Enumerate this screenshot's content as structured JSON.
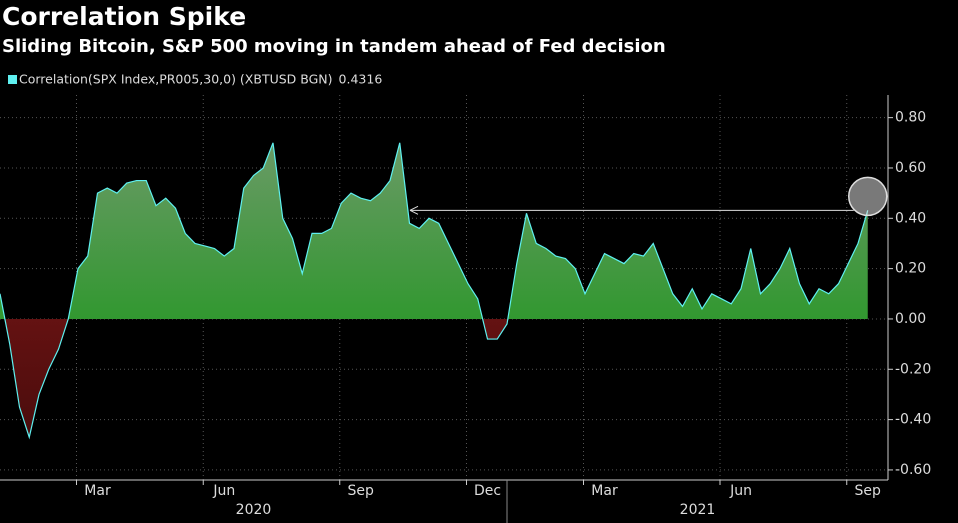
{
  "chart_data": {
    "type": "area",
    "title": "Correlation Spike",
    "subtitle": "Sliding Bitcoin, S&P 500 moving in tandem ahead of Fed decision",
    "categories": [
      null,
      null,
      null,
      null,
      null,
      null,
      null,
      null,
      null,
      null,
      "Mar",
      null,
      null,
      null,
      null,
      null,
      null,
      null,
      null,
      null,
      null,
      null,
      null,
      "Jun",
      null,
      null,
      null,
      null,
      null,
      null,
      null,
      null,
      null,
      null,
      null,
      null,
      null,
      "Sep",
      null,
      null,
      null,
      null,
      null,
      null,
      null,
      null,
      null,
      null,
      null,
      null,
      "Dec",
      null,
      null,
      null,
      null,
      null,
      null,
      null,
      null,
      null,
      null,
      null,
      "Mar",
      null,
      null,
      null,
      null,
      null,
      null,
      null,
      null,
      null,
      null,
      null,
      null,
      null,
      "Jun",
      null,
      null,
      null,
      null,
      null,
      null,
      null,
      null,
      null,
      null,
      null,
      null,
      "Sep"
    ],
    "years": [
      "2020",
      "2021"
    ],
    "series": [
      {
        "name": "Correlation(SPX Index,PR005,30,0) (XBTUSD BGN)",
        "color": "#5ff0f0",
        "positive_color": "#119611",
        "negative_color": "#8b1a1a",
        "values": [
          0.1,
          -0.1,
          -0.35,
          -0.47,
          -0.3,
          -0.2,
          -0.12,
          0.0,
          0.2,
          0.25,
          0.5,
          0.52,
          0.5,
          0.54,
          0.55,
          0.55,
          0.45,
          0.48,
          0.44,
          0.34,
          0.3,
          0.29,
          0.28,
          0.25,
          0.28,
          0.52,
          0.57,
          0.6,
          0.7,
          0.4,
          0.32,
          0.18,
          0.34,
          0.34,
          0.36,
          0.46,
          0.5,
          0.48,
          0.47,
          0.5,
          0.55,
          0.7,
          0.38,
          0.36,
          0.4,
          0.38,
          0.3,
          0.22,
          0.14,
          0.08,
          -0.08,
          -0.08,
          -0.02,
          0.22,
          0.42,
          0.3,
          0.28,
          0.25,
          0.24,
          0.2,
          0.1,
          0.18,
          0.26,
          0.24,
          0.22,
          0.26,
          0.25,
          0.3,
          0.2,
          0.1,
          0.05,
          0.12,
          0.04,
          0.1,
          0.08,
          0.06,
          0.12,
          0.28,
          0.1,
          0.14,
          0.2,
          0.28,
          0.14,
          0.06,
          0.12,
          0.1,
          0.14,
          0.22,
          0.3,
          0.4316
        ]
      }
    ],
    "ylim": [
      -0.64,
      0.89
    ],
    "yticks": [
      {
        "value": 0.8,
        "label": "0.80"
      },
      {
        "value": 0.6,
        "label": "0.60"
      },
      {
        "value": 0.4,
        "label": "0.40"
      },
      {
        "value": 0.2,
        "label": "0.20"
      },
      {
        "value": 0,
        "label": "0.00"
      },
      {
        "value": -0.2,
        "label": "-0.20"
      },
      {
        "value": -0.4,
        "label": "-0.40"
      },
      {
        "value": -0.6,
        "label": "-0.60"
      }
    ],
    "grid": true
  }
}
